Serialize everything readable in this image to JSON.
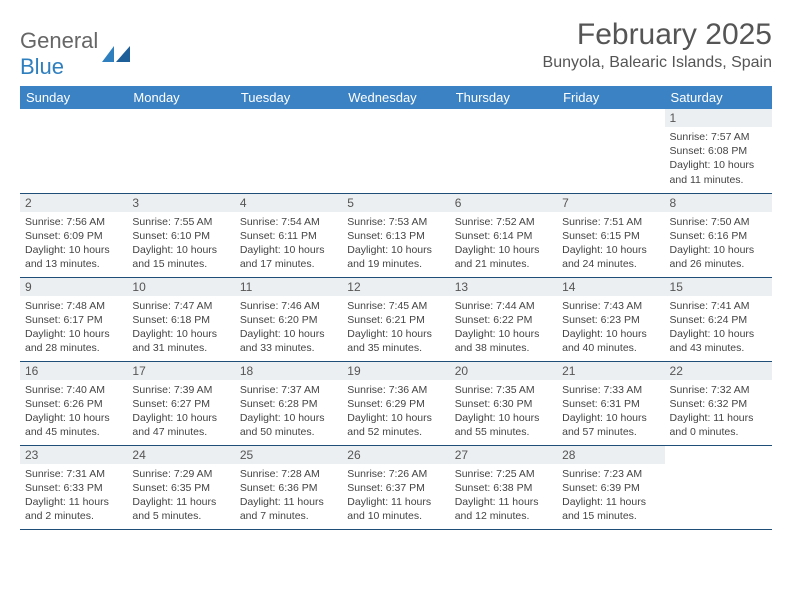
{
  "brand": {
    "part1": "General",
    "part2": "Blue"
  },
  "title": "February 2025",
  "location": "Bunyola, Balearic Islands, Spain",
  "colors": {
    "header_bg": "#3b82c4",
    "header_text": "#ffffff",
    "cell_border": "#1f4e79",
    "daynum_bg": "#eceff1",
    "text": "#444444",
    "brand_gray": "#666666",
    "brand_blue": "#2f7fbf"
  },
  "weekdays": [
    "Sunday",
    "Monday",
    "Tuesday",
    "Wednesday",
    "Thursday",
    "Friday",
    "Saturday"
  ],
  "weeks": [
    [
      null,
      null,
      null,
      null,
      null,
      null,
      {
        "n": "1",
        "sr": "7:57 AM",
        "ss": "6:08 PM",
        "dl": "10 hours and 11 minutes."
      }
    ],
    [
      {
        "n": "2",
        "sr": "7:56 AM",
        "ss": "6:09 PM",
        "dl": "10 hours and 13 minutes."
      },
      {
        "n": "3",
        "sr": "7:55 AM",
        "ss": "6:10 PM",
        "dl": "10 hours and 15 minutes."
      },
      {
        "n": "4",
        "sr": "7:54 AM",
        "ss": "6:11 PM",
        "dl": "10 hours and 17 minutes."
      },
      {
        "n": "5",
        "sr": "7:53 AM",
        "ss": "6:13 PM",
        "dl": "10 hours and 19 minutes."
      },
      {
        "n": "6",
        "sr": "7:52 AM",
        "ss": "6:14 PM",
        "dl": "10 hours and 21 minutes."
      },
      {
        "n": "7",
        "sr": "7:51 AM",
        "ss": "6:15 PM",
        "dl": "10 hours and 24 minutes."
      },
      {
        "n": "8",
        "sr": "7:50 AM",
        "ss": "6:16 PM",
        "dl": "10 hours and 26 minutes."
      }
    ],
    [
      {
        "n": "9",
        "sr": "7:48 AM",
        "ss": "6:17 PM",
        "dl": "10 hours and 28 minutes."
      },
      {
        "n": "10",
        "sr": "7:47 AM",
        "ss": "6:18 PM",
        "dl": "10 hours and 31 minutes."
      },
      {
        "n": "11",
        "sr": "7:46 AM",
        "ss": "6:20 PM",
        "dl": "10 hours and 33 minutes."
      },
      {
        "n": "12",
        "sr": "7:45 AM",
        "ss": "6:21 PM",
        "dl": "10 hours and 35 minutes."
      },
      {
        "n": "13",
        "sr": "7:44 AM",
        "ss": "6:22 PM",
        "dl": "10 hours and 38 minutes."
      },
      {
        "n": "14",
        "sr": "7:43 AM",
        "ss": "6:23 PM",
        "dl": "10 hours and 40 minutes."
      },
      {
        "n": "15",
        "sr": "7:41 AM",
        "ss": "6:24 PM",
        "dl": "10 hours and 43 minutes."
      }
    ],
    [
      {
        "n": "16",
        "sr": "7:40 AM",
        "ss": "6:26 PM",
        "dl": "10 hours and 45 minutes."
      },
      {
        "n": "17",
        "sr": "7:39 AM",
        "ss": "6:27 PM",
        "dl": "10 hours and 47 minutes."
      },
      {
        "n": "18",
        "sr": "7:37 AM",
        "ss": "6:28 PM",
        "dl": "10 hours and 50 minutes."
      },
      {
        "n": "19",
        "sr": "7:36 AM",
        "ss": "6:29 PM",
        "dl": "10 hours and 52 minutes."
      },
      {
        "n": "20",
        "sr": "7:35 AM",
        "ss": "6:30 PM",
        "dl": "10 hours and 55 minutes."
      },
      {
        "n": "21",
        "sr": "7:33 AM",
        "ss": "6:31 PM",
        "dl": "10 hours and 57 minutes."
      },
      {
        "n": "22",
        "sr": "7:32 AM",
        "ss": "6:32 PM",
        "dl": "11 hours and 0 minutes."
      }
    ],
    [
      {
        "n": "23",
        "sr": "7:31 AM",
        "ss": "6:33 PM",
        "dl": "11 hours and 2 minutes."
      },
      {
        "n": "24",
        "sr": "7:29 AM",
        "ss": "6:35 PM",
        "dl": "11 hours and 5 minutes."
      },
      {
        "n": "25",
        "sr": "7:28 AM",
        "ss": "6:36 PM",
        "dl": "11 hours and 7 minutes."
      },
      {
        "n": "26",
        "sr": "7:26 AM",
        "ss": "6:37 PM",
        "dl": "11 hours and 10 minutes."
      },
      {
        "n": "27",
        "sr": "7:25 AM",
        "ss": "6:38 PM",
        "dl": "11 hours and 12 minutes."
      },
      {
        "n": "28",
        "sr": "7:23 AM",
        "ss": "6:39 PM",
        "dl": "11 hours and 15 minutes."
      },
      null
    ]
  ],
  "labels": {
    "sunrise": "Sunrise:",
    "sunset": "Sunset:",
    "daylight": "Daylight:"
  }
}
